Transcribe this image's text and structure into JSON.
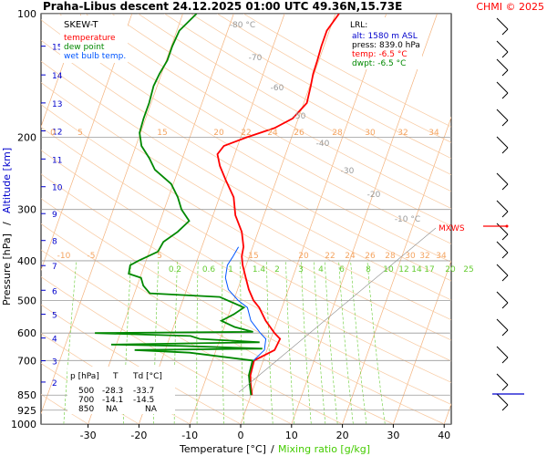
{
  "header": {
    "title": "Praha-Libus   descent   24.12.2025 01:00 UTC   49.36N,15.73E",
    "copyright": "CHMI © 2025"
  },
  "legend": {
    "title": "SKEW-T",
    "items": [
      {
        "label": "temperature",
        "color": "#ff0000"
      },
      {
        "label": "dew point",
        "color": "#008800"
      },
      {
        "label": "wet bulb temp.",
        "color": "#0055ff"
      }
    ]
  },
  "lrl": {
    "title": "LRL:",
    "alt": "alt: 1580 m ASL",
    "press": "press: 839.0 hPa",
    "temp": "temp: -6.5 °C",
    "dwpt": "dwpt: -6.5 °C"
  },
  "table": {
    "headers": [
      "p [hPa]",
      "T",
      "Td [°C]"
    ],
    "rows": [
      [
        "500",
        "-28.3",
        "-33.7"
      ],
      [
        "700",
        "-14.1",
        "-14.5"
      ],
      [
        "850",
        "NA",
        "NA"
      ]
    ]
  },
  "axes": {
    "xlabel_temp": "Temperature [°C]",
    "xlabel_sep": "/",
    "xlabel_mix": "Mixing ratio [g/kg]",
    "ylabel_pressure": "Pressure [hPa]",
    "ylabel_sep": "/",
    "ylabel_alt": "Altitude [km]",
    "mxws_label": "MXWS"
  },
  "chart_data": {
    "type": "line",
    "pressure_ticks": [
      100,
      200,
      300,
      400,
      500,
      600,
      700,
      850,
      925,
      1000
    ],
    "temperature_ticks": [
      -30,
      -20,
      -10,
      0,
      10,
      20,
      30,
      40
    ],
    "altitude_ticks_km": [
      {
        "km": 2,
        "p": 790
      },
      {
        "km": 3,
        "p": 701
      },
      {
        "km": 4,
        "p": 617
      },
      {
        "km": 5,
        "p": 540
      },
      {
        "km": 6,
        "p": 472
      },
      {
        "km": 7,
        "p": 411
      },
      {
        "km": 8,
        "p": 357
      },
      {
        "km": 9,
        "p": 307
      },
      {
        "km": 10,
        "p": 264
      },
      {
        "km": 11,
        "p": 226
      },
      {
        "km": 12,
        "p": 193
      },
      {
        "km": 13,
        "p": 165
      },
      {
        "km": 14,
        "p": 141
      },
      {
        "km": 15,
        "p": 120
      }
    ],
    "isotherm_labels_top": [
      "-80 °C",
      "-70",
      "-60",
      "-50",
      "-40",
      "-30",
      "-20",
      "-10 °C"
    ],
    "dry_adiabat_labels_200": [
      "0",
      "5",
      "15",
      "20",
      "22",
      "24",
      "26",
      "28",
      "30",
      "32",
      "34"
    ],
    "dry_adiabat_labels_400": [
      "-10",
      "-5",
      "5",
      "15",
      "20",
      "22",
      "24",
      "26",
      "28",
      "30",
      "32",
      "34"
    ],
    "mixing_ratio_labels": [
      "0.2",
      "0.6",
      "1",
      "1.4",
      "2",
      "3",
      "4",
      "6",
      "8",
      "10",
      "12",
      "14",
      "17",
      "20",
      "25"
    ],
    "series": [
      {
        "name": "temperature",
        "color": "#ff0000",
        "points": [
          {
            "p": 850,
            "t": 0.2
          },
          {
            "p": 800,
            "t": -0.8
          },
          {
            "p": 760,
            "t": -1.5
          },
          {
            "p": 700,
            "t": -1.8
          },
          {
            "p": 660,
            "t": 1.5
          },
          {
            "p": 620,
            "t": 1.8
          },
          {
            "p": 600,
            "t": 0.3
          },
          {
            "p": 560,
            "t": -2.3
          },
          {
            "p": 520,
            "t": -4.5
          },
          {
            "p": 500,
            "t": -6.1
          },
          {
            "p": 470,
            "t": -7.8
          },
          {
            "p": 440,
            "t": -9.2
          },
          {
            "p": 410,
            "t": -10.7
          },
          {
            "p": 390,
            "t": -11.5
          },
          {
            "p": 370,
            "t": -11.8
          },
          {
            "p": 340,
            "t": -13.2
          },
          {
            "p": 310,
            "t": -15.6
          },
          {
            "p": 280,
            "t": -17.2
          },
          {
            "p": 255,
            "t": -19.9
          },
          {
            "p": 235,
            "t": -22.1
          },
          {
            "p": 220,
            "t": -23.4
          },
          {
            "p": 210,
            "t": -22.7
          },
          {
            "p": 200,
            "t": -18.8
          },
          {
            "p": 190,
            "t": -14.0
          },
          {
            "p": 180,
            "t": -11.1
          },
          {
            "p": 165,
            "t": -9.4
          },
          {
            "p": 150,
            "t": -9.8
          },
          {
            "p": 140,
            "t": -10.2
          },
          {
            "p": 130,
            "t": -10.3
          },
          {
            "p": 120,
            "t": -10.5
          },
          {
            "p": 110,
            "t": -10.5
          },
          {
            "p": 100,
            "t": -9.3
          }
        ]
      },
      {
        "name": "dew point",
        "color": "#008800",
        "points": [
          {
            "p": 850,
            "t": 0.0
          },
          {
            "p": 800,
            "t": -1.0
          },
          {
            "p": 760,
            "t": -1.8
          },
          {
            "p": 700,
            "t": -2.1
          },
          {
            "p": 670,
            "t": -15.0
          },
          {
            "p": 660,
            "t": -26.0
          },
          {
            "p": 655,
            "t": -1.0
          },
          {
            "p": 645,
            "t": -17.0
          },
          {
            "p": 640,
            "t": -31.0
          },
          {
            "p": 632,
            "t": -2.0
          },
          {
            "p": 620,
            "t": -14.0
          },
          {
            "p": 610,
            "t": -16.0
          },
          {
            "p": 600,
            "t": -35.0
          },
          {
            "p": 596,
            "t": -4.0
          },
          {
            "p": 580,
            "t": -8.0
          },
          {
            "p": 560,
            "t": -11.0
          },
          {
            "p": 540,
            "t": -9.0
          },
          {
            "p": 520,
            "t": -7.5
          },
          {
            "p": 490,
            "t": -13.0
          },
          {
            "p": 480,
            "t": -27.0
          },
          {
            "p": 460,
            "t": -28.8
          },
          {
            "p": 440,
            "t": -29.8
          },
          {
            "p": 430,
            "t": -32.5
          },
          {
            "p": 410,
            "t": -32.8
          },
          {
            "p": 400,
            "t": -31.5
          },
          {
            "p": 380,
            "t": -28.3
          },
          {
            "p": 360,
            "t": -27.9
          },
          {
            "p": 340,
            "t": -25.8
          },
          {
            "p": 320,
            "t": -24.3
          },
          {
            "p": 300,
            "t": -26.6
          },
          {
            "p": 280,
            "t": -28.2
          },
          {
            "p": 260,
            "t": -30.4
          },
          {
            "p": 240,
            "t": -34.6
          },
          {
            "p": 225,
            "t": -36.5
          },
          {
            "p": 210,
            "t": -38.9
          },
          {
            "p": 195,
            "t": -40.2
          },
          {
            "p": 180,
            "t": -40.4
          },
          {
            "p": 165,
            "t": -40.4
          },
          {
            "p": 150,
            "t": -40.7
          },
          {
            "p": 140,
            "t": -40.4
          },
          {
            "p": 130,
            "t": -39.8
          },
          {
            "p": 120,
            "t": -39.8
          },
          {
            "p": 110,
            "t": -39.5
          },
          {
            "p": 100,
            "t": -37.3
          }
        ]
      },
      {
        "name": "wet bulb temp.",
        "color": "#0055ff",
        "points": [
          {
            "p": 700,
            "t": -1.9
          },
          {
            "p": 660,
            "t": -0.5
          },
          {
            "p": 620,
            "t": -1.0
          },
          {
            "p": 600,
            "t": -2.5
          },
          {
            "p": 560,
            "t": -5.2
          },
          {
            "p": 520,
            "t": -6.8
          },
          {
            "p": 500,
            "t": -9.1
          },
          {
            "p": 470,
            "t": -11.8
          },
          {
            "p": 440,
            "t": -13.2
          },
          {
            "p": 410,
            "t": -13.7
          },
          {
            "p": 390,
            "t": -13.2
          },
          {
            "p": 370,
            "t": -12.8
          }
        ]
      }
    ]
  }
}
